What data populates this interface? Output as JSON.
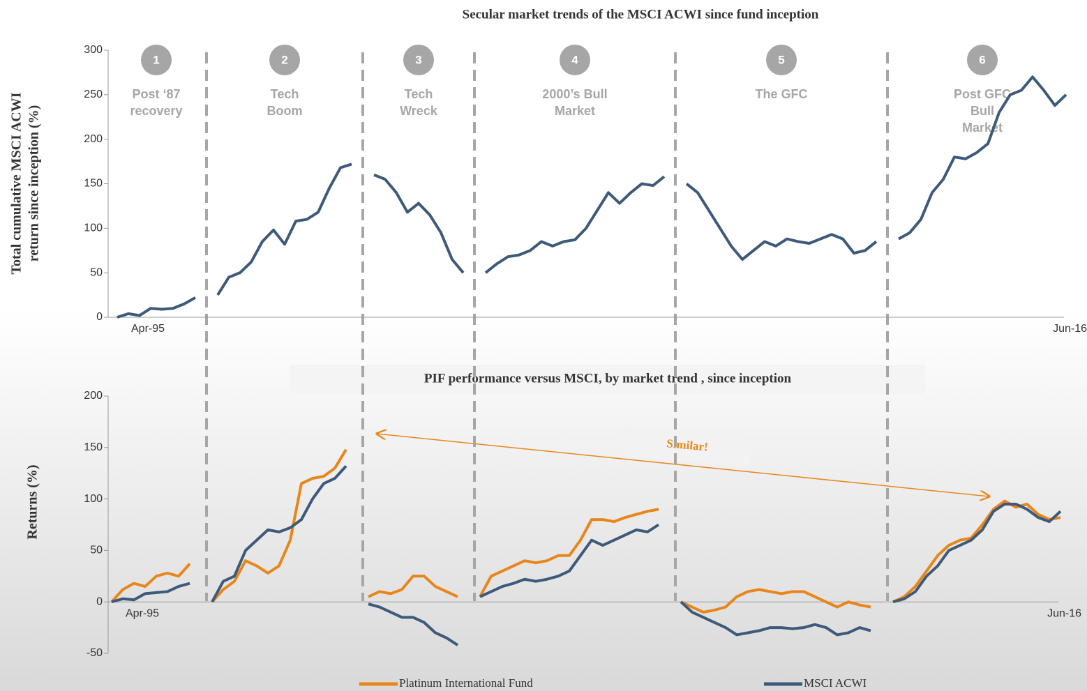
{
  "chart_data": [
    {
      "type": "line",
      "title": "Secular  market  trends of  the MSCI ACWI since fund inception",
      "ylabel": [
        "Total cumulative MSCI ACWI",
        "return since inception (%)"
      ],
      "ylim": [
        0,
        300
      ],
      "yticks": [
        0,
        50,
        100,
        150,
        200,
        250,
        300
      ],
      "phases": [
        {
          "number": "1",
          "label": [
            "Post ‘87",
            "recovery"
          ]
        },
        {
          "number": "2",
          "label": [
            "Tech",
            "Boom"
          ]
        },
        {
          "number": "3",
          "label": [
            "Tech",
            "Wreck"
          ]
        },
        {
          "number": "4",
          "label": [
            "2000’s Bull",
            "Market"
          ]
        },
        {
          "number": "5",
          "label": [
            "The GFC"
          ]
        },
        {
          "number": "6",
          "label": [
            "Post GFC",
            "Bull",
            "Market"
          ]
        }
      ],
      "categories": [
        "Apr-95",
        null,
        null,
        null,
        null,
        null,
        null,
        null,
        null,
        null,
        null,
        null,
        null,
        null,
        null,
        null,
        null,
        null,
        null,
        null,
        null,
        null,
        null,
        null,
        null,
        null,
        null,
        null,
        null,
        null,
        null,
        null,
        null,
        null,
        null,
        null,
        null,
        null,
        null,
        null,
        null,
        null,
        null,
        null,
        null,
        null,
        null,
        null,
        null,
        null,
        null,
        null,
        null,
        null,
        null,
        null,
        null,
        null,
        null,
        null,
        null,
        null,
        null,
        null,
        null,
        null,
        null,
        null,
        null,
        null,
        null,
        null,
        null,
        null,
        null,
        null,
        null,
        null,
        null,
        null,
        null,
        null,
        null,
        null,
        null,
        "Jun-16"
      ],
      "series": [
        {
          "name": "MSCI ACWI",
          "color": "#3d5a7a",
          "values": [
            0,
            4,
            2,
            10,
            9,
            10,
            15,
            22,
            null,
            25,
            45,
            50,
            62,
            85,
            98,
            82,
            108,
            110,
            118,
            145,
            168,
            172,
            null,
            160,
            155,
            140,
            118,
            128,
            115,
            95,
            65,
            50,
            null,
            50,
            60,
            68,
            70,
            75,
            85,
            80,
            85,
            87,
            100,
            120,
            140,
            128,
            140,
            150,
            148,
            158,
            null,
            150,
            140,
            120,
            100,
            80,
            65,
            75,
            85,
            80,
            88,
            85,
            83,
            88,
            93,
            88,
            72,
            75,
            85,
            null,
            88,
            95,
            110,
            140,
            155,
            180,
            178,
            185,
            195,
            230,
            250,
            255,
            270,
            255,
            238,
            250
          ]
        }
      ]
    },
    {
      "type": "line",
      "title": "PIF performance versus MSCI, by market trend , since inception",
      "ylabel": [
        "Returns (%)"
      ],
      "annotation": "Similar!",
      "ylim": [
        -50,
        200
      ],
      "yticks": [
        -50,
        0,
        50,
        100,
        150,
        200
      ],
      "categories": [
        "Apr-95",
        null,
        null,
        null,
        null,
        null,
        null,
        null,
        null,
        null,
        null,
        null,
        null,
        null,
        null,
        null,
        null,
        null,
        null,
        null,
        null,
        null,
        null,
        null,
        null,
        null,
        null,
        null,
        null,
        null,
        null,
        null,
        null,
        null,
        null,
        null,
        null,
        null,
        null,
        null,
        null,
        null,
        null,
        null,
        null,
        null,
        null,
        null,
        null,
        null,
        null,
        null,
        null,
        null,
        null,
        null,
        null,
        null,
        null,
        null,
        null,
        null,
        null,
        null,
        null,
        null,
        null,
        null,
        null,
        null,
        null,
        null,
        null,
        null,
        null,
        null,
        null,
        null,
        null,
        null,
        null,
        null,
        null,
        null,
        null,
        "Jun-16"
      ],
      "series": [
        {
          "name": "Platinum International Fund",
          "color": "#e8861a",
          "values": [
            0,
            12,
            18,
            15,
            25,
            28,
            25,
            37,
            null,
            0,
            12,
            20,
            40,
            35,
            28,
            35,
            60,
            115,
            120,
            122,
            130,
            148,
            null,
            5,
            10,
            8,
            12,
            25,
            25,
            15,
            10,
            5,
            null,
            5,
            25,
            30,
            35,
            40,
            38,
            40,
            45,
            45,
            60,
            80,
            80,
            78,
            82,
            85,
            88,
            90,
            null,
            0,
            -5,
            -10,
            -8,
            -5,
            5,
            10,
            12,
            10,
            8,
            10,
            10,
            5,
            0,
            -5,
            0,
            -3,
            -5,
            null,
            0,
            5,
            15,
            30,
            45,
            55,
            60,
            62,
            75,
            90,
            98,
            92,
            95,
            85,
            80,
            82
          ]
        },
        {
          "name": "MSCI ACWI",
          "color": "#3d5a7a",
          "values": [
            0,
            3,
            2,
            8,
            9,
            10,
            15,
            18,
            null,
            0,
            20,
            25,
            50,
            60,
            70,
            68,
            72,
            80,
            100,
            115,
            120,
            132,
            null,
            -2,
            -5,
            -10,
            -15,
            -15,
            -20,
            -30,
            -35,
            -42,
            null,
            5,
            10,
            15,
            18,
            22,
            20,
            22,
            25,
            30,
            45,
            60,
            55,
            60,
            65,
            70,
            68,
            75,
            null,
            0,
            -10,
            -15,
            -20,
            -25,
            -32,
            -30,
            -28,
            -25,
            -25,
            -26,
            -25,
            -22,
            -25,
            -32,
            -30,
            -25,
            -28,
            null,
            0,
            3,
            10,
            25,
            35,
            50,
            55,
            60,
            70,
            88,
            95,
            95,
            90,
            82,
            78,
            88
          ]
        }
      ]
    }
  ]
}
